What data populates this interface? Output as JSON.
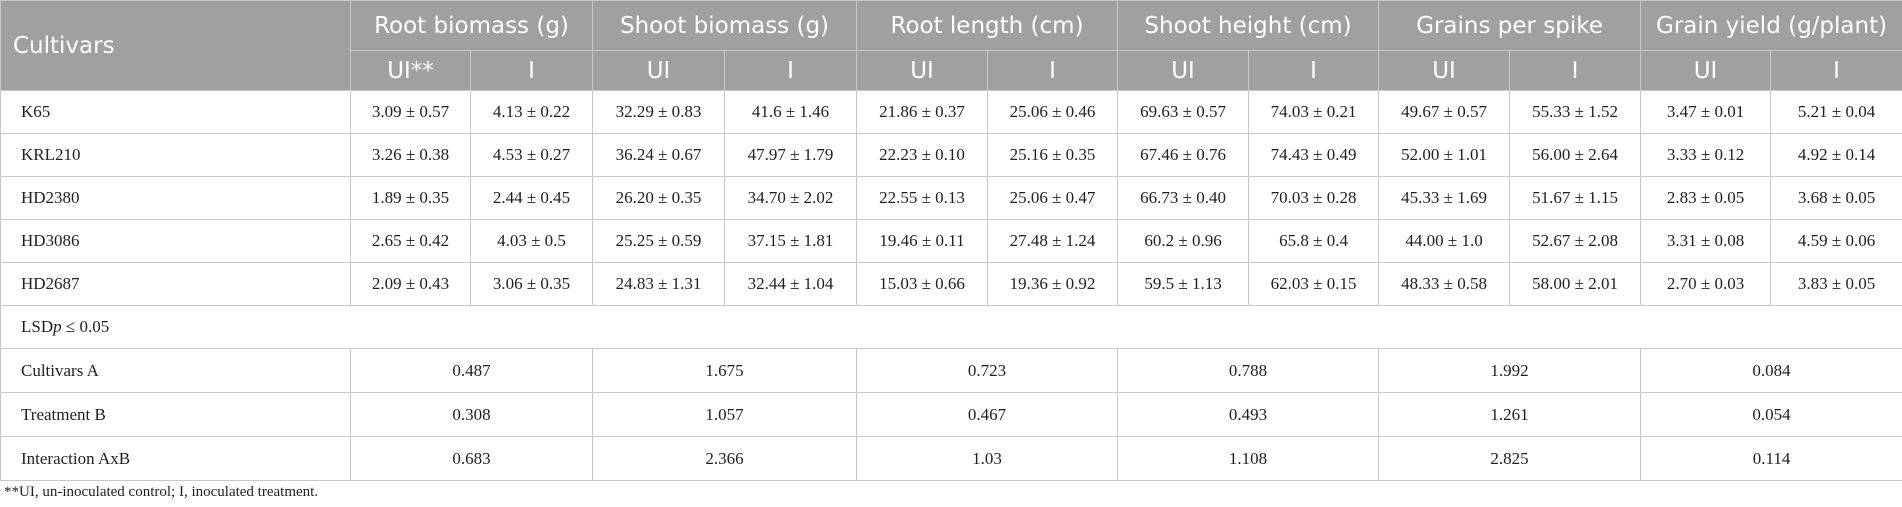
{
  "header": {
    "cultivars_label": "Cultivars",
    "groups": [
      "Root biomass (g)",
      "Shoot biomass (g)",
      "Root length (cm)",
      "Shoot height (cm)",
      "Grains per spike",
      "Grain yield (g/plant)"
    ],
    "sub": [
      "UI**",
      "I",
      "UI",
      "I",
      "UI",
      "I",
      "UI",
      "I",
      "UI",
      "I",
      "UI",
      "I"
    ]
  },
  "rows": [
    {
      "name": "K65",
      "cells": [
        "3.09 ± 0.57",
        "4.13 ± 0.22",
        "32.29 ± 0.83",
        "41.6 ± 1.46",
        "21.86 ± 0.37",
        "25.06 ± 0.46",
        "69.63 ± 0.57",
        "74.03 ± 0.21",
        "49.67 ± 0.57",
        "55.33 ± 1.52",
        "3.47 ± 0.01",
        "5.21 ± 0.04"
      ]
    },
    {
      "name": "KRL210",
      "cells": [
        "3.26 ± 0.38",
        "4.53 ± 0.27",
        "36.24 ± 0.67",
        "47.97 ± 1.79",
        "22.23 ± 0.10",
        "25.16 ± 0.35",
        "67.46 ± 0.76",
        "74.43 ± 0.49",
        "52.00 ± 1.01",
        "56.00 ± 2.64",
        "3.33 ± 0.12",
        "4.92 ± 0.14"
      ]
    },
    {
      "name": "HD2380",
      "cells": [
        "1.89 ± 0.35",
        "2.44 ± 0.45",
        "26.20 ± 0.35",
        "34.70 ± 2.02",
        "22.55 ± 0.13",
        "25.06 ± 0.47",
        "66.73 ± 0.40",
        "70.03 ± 0.28",
        "45.33 ± 1.69",
        "51.67 ± 1.15",
        "2.83 ± 0.05",
        "3.68 ± 0.05"
      ]
    },
    {
      "name": "HD3086",
      "cells": [
        "2.65 ± 0.42",
        "4.03 ± 0.5",
        "25.25 ± 0.59",
        "37.15 ± 1.81",
        "19.46 ± 0.11",
        "27.48 ± 1.24",
        "60.2 ± 0.96",
        "65.8 ± 0.4",
        "44.00 ± 1.0",
        "52.67 ± 2.08",
        "3.31 ± 0.08",
        "4.59 ± 0.06"
      ]
    },
    {
      "name": "HD2687",
      "cells": [
        "2.09 ± 0.43",
        "3.06 ± 0.35",
        "24.83 ± 1.31",
        "32.44 ± 1.04",
        "15.03 ± 0.66",
        "19.36 ± 0.92",
        "59.5 ± 1.13",
        "62.03 ± 0.15",
        "48.33 ± 0.58",
        "58.00 ± 2.01",
        "2.70 ± 0.03",
        "3.83 ± 0.05"
      ]
    }
  ],
  "lsd": {
    "prefix": "LSD",
    "p": "p",
    "suffix": " ≤ 0.05"
  },
  "stats": [
    {
      "name": "Cultivars A",
      "values": [
        "0.487",
        "1.675",
        "0.723",
        "0.788",
        "1.992",
        "0.084"
      ]
    },
    {
      "name": "Treatment B",
      "values": [
        "0.308",
        "1.057",
        "0.467",
        "0.493",
        "1.261",
        "0.054"
      ]
    },
    {
      "name": "Interaction AxB",
      "values": [
        "0.683",
        "2.366",
        "1.03",
        "1.108",
        "2.825",
        "0.114"
      ]
    }
  ],
  "footnote": "**UI, un-inoculated control; I, inoculated treatment."
}
